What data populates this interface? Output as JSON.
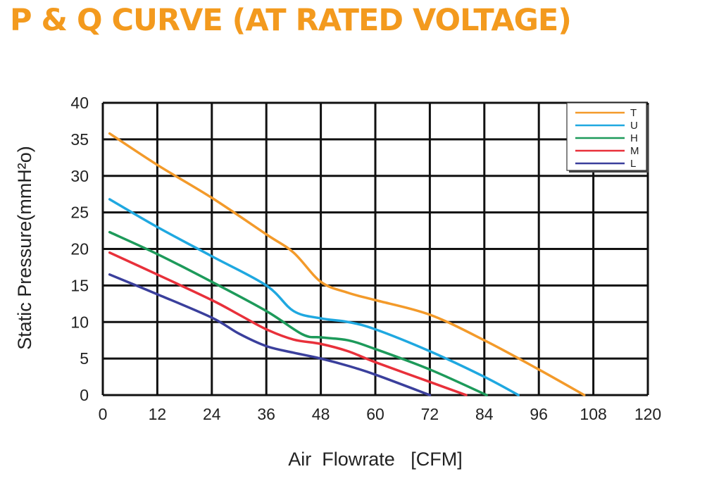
{
  "title": "P & Q CURVE (AT RATED VOLTAGE)",
  "chart_data": {
    "type": "line",
    "title": "P & Q CURVE (AT RATED VOLTAGE)",
    "xlabel": "Air  Flowrate   [CFM]",
    "ylabel": "Static Pressure(mmH²o)",
    "xlim": [
      0,
      120
    ],
    "ylim": [
      0,
      40
    ],
    "xticks": [
      0,
      12,
      24,
      36,
      48,
      60,
      72,
      84,
      96,
      108,
      120
    ],
    "yticks": [
      0,
      5,
      10,
      15,
      20,
      25,
      30,
      35,
      40
    ],
    "grid": true,
    "legend_position": "top-right",
    "series": [
      {
        "name": "T",
        "color": "#f39a2a",
        "x": [
          1.5,
          12,
          24,
          36,
          42,
          48,
          54,
          60,
          72,
          84,
          96,
          106
        ],
        "y": [
          35.8,
          31.5,
          27,
          22,
          19.5,
          15.5,
          14,
          13,
          11,
          7.5,
          3.5,
          0
        ]
      },
      {
        "name": "U",
        "color": "#1fa8e0",
        "x": [
          1.5,
          12,
          24,
          36,
          42,
          48,
          54,
          60,
          72,
          84,
          91.5
        ],
        "y": [
          26.8,
          23,
          19,
          15,
          11.5,
          10.5,
          10,
          9,
          6,
          2.5,
          0
        ]
      },
      {
        "name": "H",
        "color": "#1d9a5a",
        "x": [
          1.5,
          12,
          24,
          36,
          44,
          48,
          54,
          60,
          72,
          84.5
        ],
        "y": [
          22.3,
          19.3,
          15.5,
          11.5,
          8.3,
          7.9,
          7.5,
          6.3,
          3.5,
          0
        ]
      },
      {
        "name": "M",
        "color": "#e8303a",
        "x": [
          1.5,
          12,
          24,
          30,
          36,
          42,
          48,
          54,
          60,
          72,
          80
        ],
        "y": [
          19.5,
          16.5,
          13,
          11,
          9,
          7.6,
          7,
          6,
          4.5,
          1.8,
          0
        ]
      },
      {
        "name": "L",
        "color": "#3a3f9c",
        "x": [
          1.5,
          12,
          24,
          30,
          36,
          42,
          48,
          54,
          60,
          72
        ],
        "y": [
          16.5,
          13.8,
          10.6,
          8.4,
          6.7,
          5.8,
          5,
          4,
          2.8,
          0
        ]
      }
    ]
  }
}
